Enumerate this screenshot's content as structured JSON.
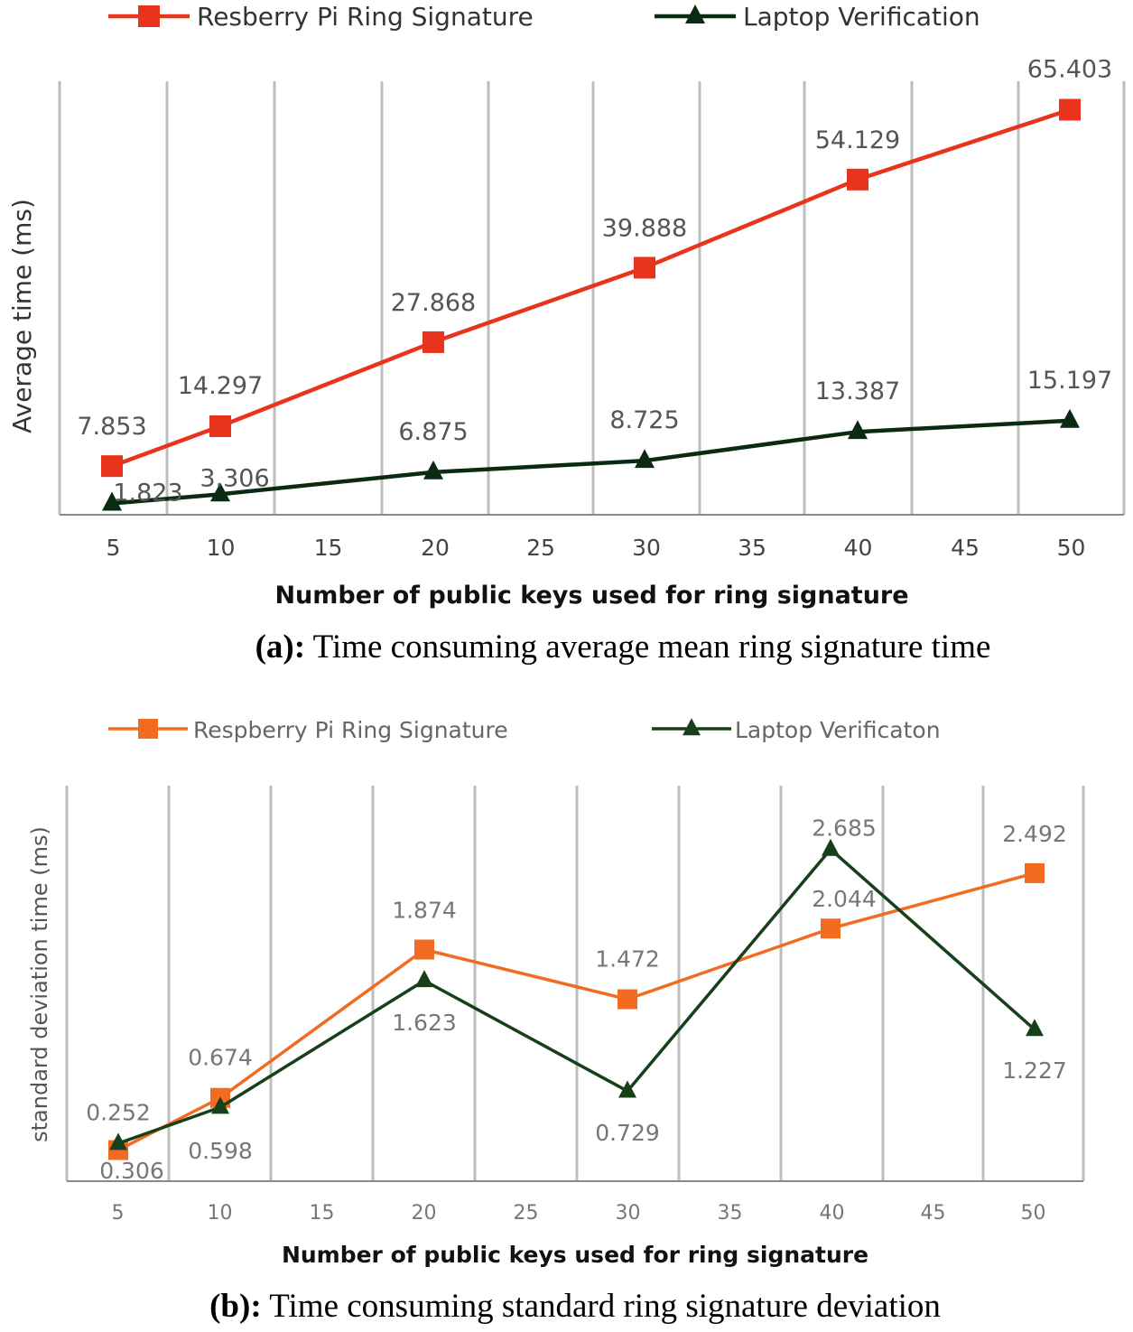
{
  "colors": {
    "grid": "#bdbdbd",
    "axis": "#8a8a8a",
    "tick_text_a": "#444444",
    "tick_text_b": "#777777",
    "label_text_a": "#555555",
    "label_text_b": "#777777"
  },
  "chart_data": [
    {
      "type": "line",
      "id": "a",
      "x": [
        5,
        10,
        20,
        30,
        40,
        50
      ],
      "xticks": [
        "5",
        "10",
        "15",
        "20",
        "25",
        "30",
        "35",
        "40",
        "45",
        "50"
      ],
      "xlabel": "Number of public keys used for ring signature",
      "ylabel": "Average time (ms)",
      "ylim": [
        0,
        70
      ],
      "grid": true,
      "legend_position": "top",
      "series": [
        {
          "name": "Resberry Pi Ring Signature",
          "values": [
            7.853,
            14.297,
            27.868,
            39.888,
            54.129,
            65.403
          ],
          "labels": [
            "7.853",
            "14.297",
            "27.868",
            "39.888",
            "54.129",
            "65.403"
          ],
          "color": "#e8341c",
          "marker": "square"
        },
        {
          "name": "Laptop Verification",
          "values": [
            1.823,
            3.306,
            6.875,
            8.725,
            13.387,
            15.197
          ],
          "labels": [
            "1.823",
            "3.306",
            "6.875",
            "8.725",
            "13.387",
            "15.197"
          ],
          "color": "#0b2a12",
          "marker": "triangle"
        }
      ],
      "caption_bold": "(a):",
      "caption_text": " Time consuming average mean ring signature time"
    },
    {
      "type": "line",
      "id": "b",
      "x": [
        5,
        10,
        20,
        30,
        40,
        50
      ],
      "xticks": [
        "5",
        "10",
        "15",
        "20",
        "25",
        "30",
        "35",
        "40",
        "45",
        "50"
      ],
      "xlabel": "Number of public keys used for ring signature",
      "ylabel": "standard deviation time (ms)",
      "ylim": [
        0,
        3.2
      ],
      "grid": true,
      "legend_position": "top",
      "series": [
        {
          "name": "Respberry Pi Ring Signature",
          "values": [
            0.252,
            0.674,
            1.874,
            1.472,
            2.044,
            2.492
          ],
          "labels": [
            "0.252",
            "0.674",
            "1.874",
            "1.472",
            "2.044",
            "2.492"
          ],
          "color": "#f26b21",
          "marker": "square"
        },
        {
          "name": "Laptop Verificaton",
          "values": [
            0.306,
            0.598,
            1.623,
            0.729,
            2.685,
            1.227
          ],
          "labels": [
            "0.306",
            "0.598",
            "1.623",
            "0.729",
            "2.685",
            "1.227"
          ],
          "color": "#173f1a",
          "marker": "triangle"
        }
      ],
      "caption_bold": "(b):",
      "caption_text": " Time consuming standard ring signature deviation"
    }
  ]
}
